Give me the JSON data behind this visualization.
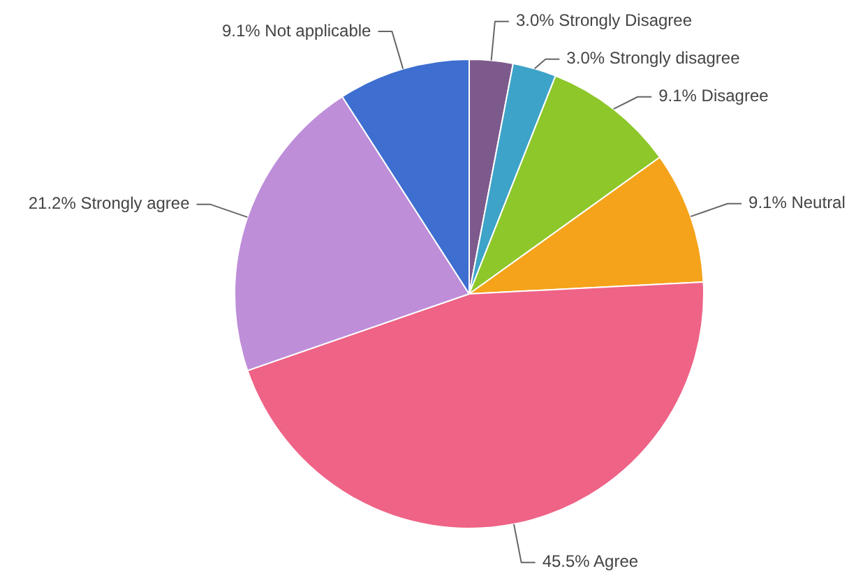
{
  "chart_data": {
    "type": "pie",
    "categories": [
      "Strongly Disagree",
      "Strongly disagree",
      "Disagree",
      "Neutral",
      "Agree",
      "Strongly agree",
      "Not applicable"
    ],
    "values": [
      3.0,
      3.0,
      9.1,
      9.1,
      45.5,
      21.2,
      9.1
    ],
    "value_labels": [
      "3.0%",
      "3.0%",
      "9.1%",
      "9.1%",
      "45.5%",
      "21.2%",
      "9.1%"
    ],
    "colors": [
      "#7d5a8c",
      "#3ea3c8",
      "#8dc72a",
      "#f5a31a",
      "#ee6386",
      "#be8ed9",
      "#3d6ed0"
    ],
    "legend": false
  }
}
